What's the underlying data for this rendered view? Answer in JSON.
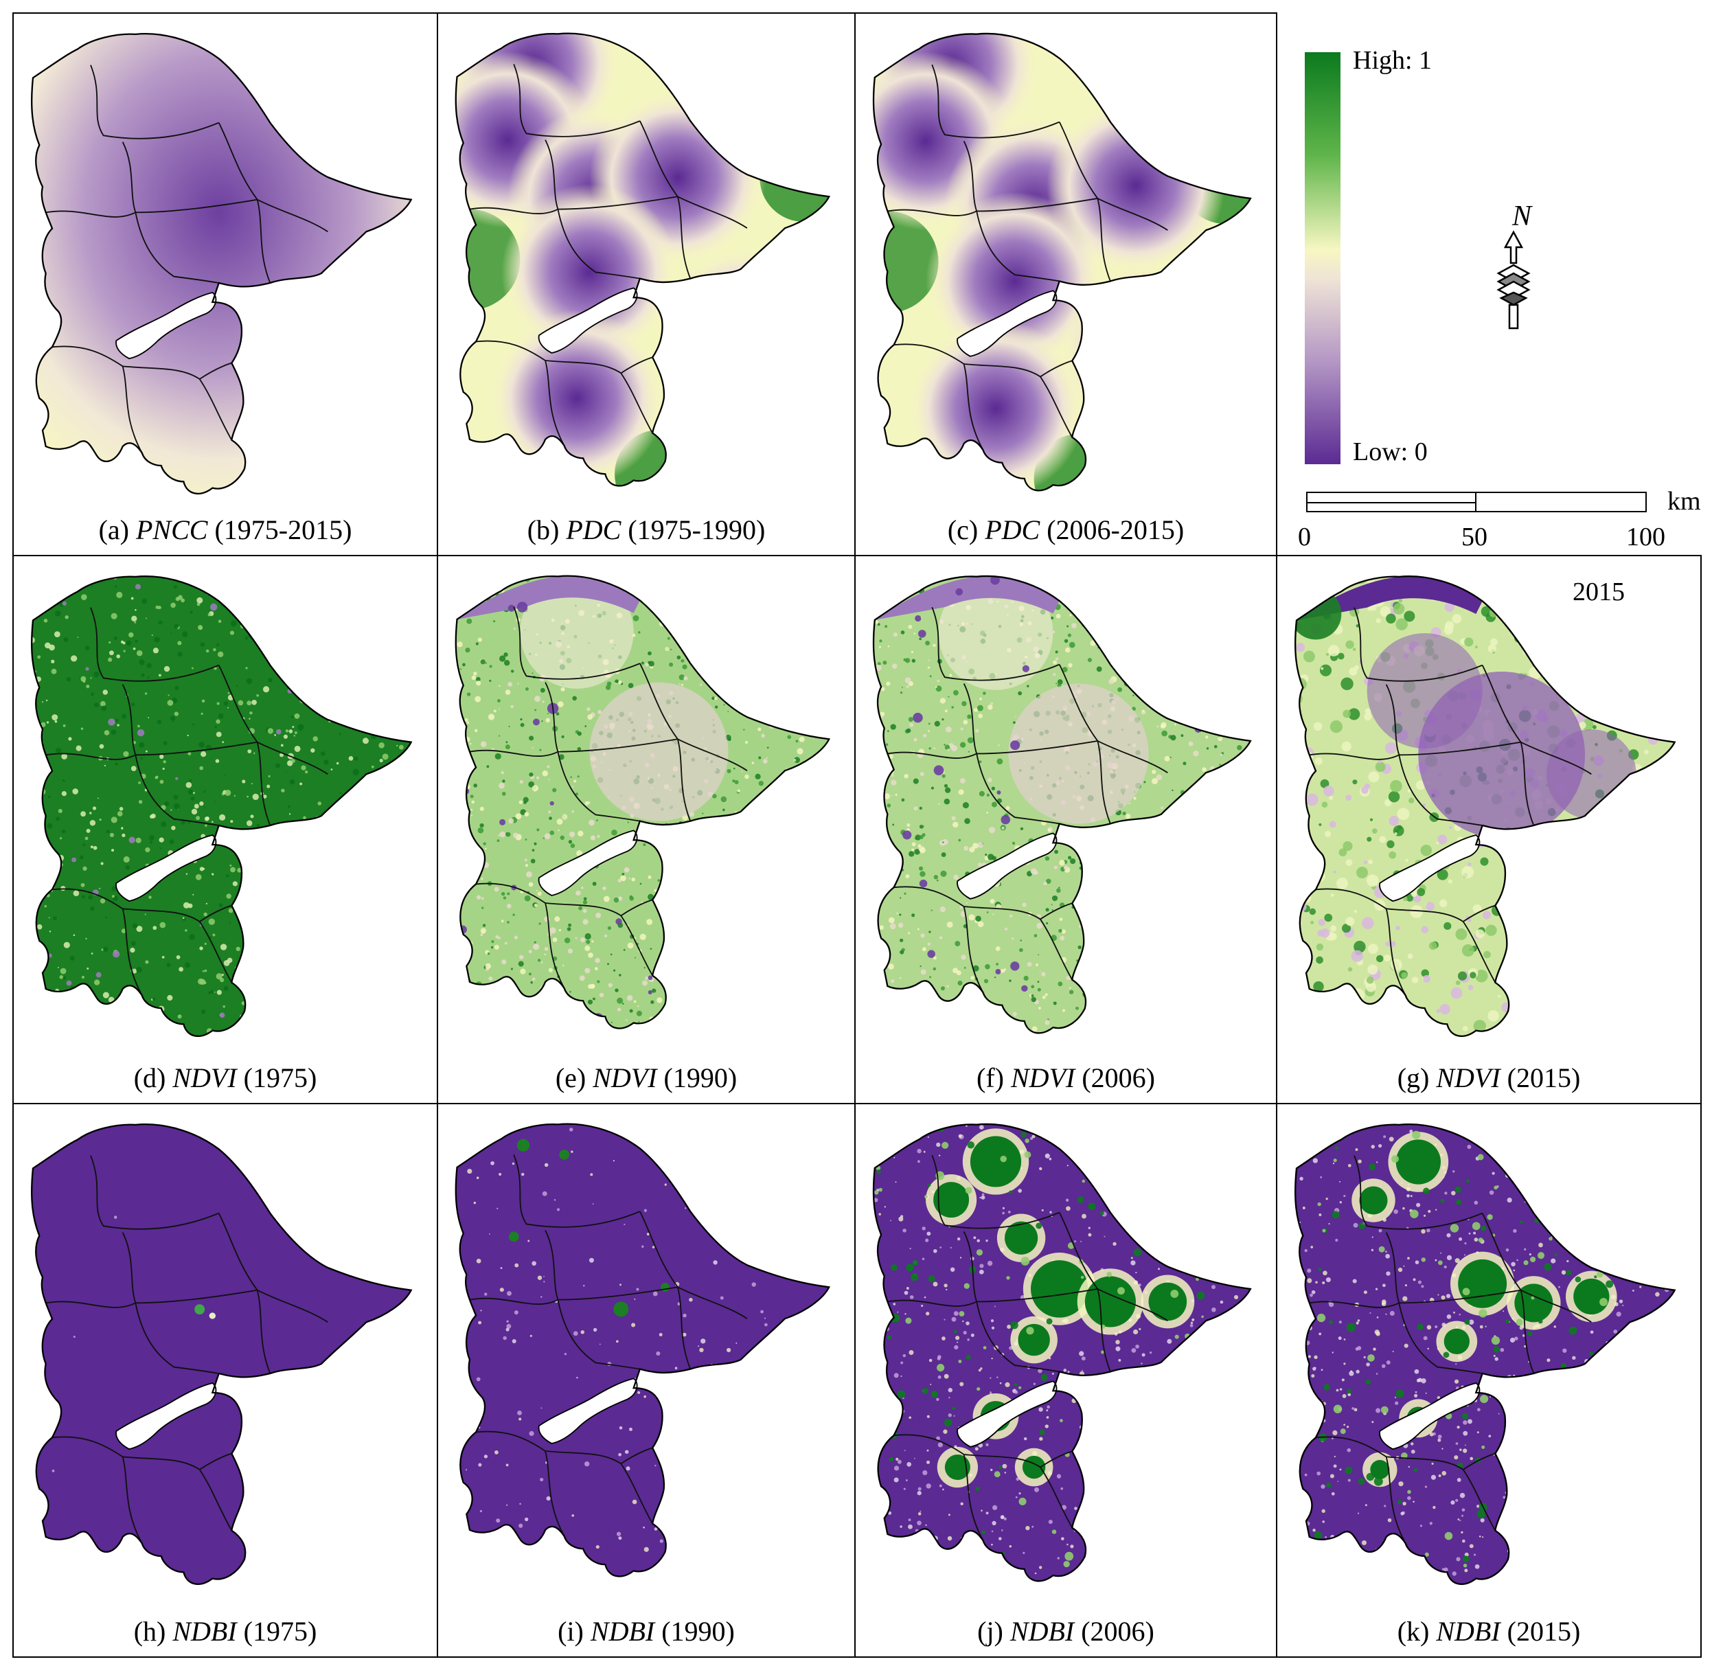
{
  "panels": [
    {
      "id": "a",
      "prefix": "(a) ",
      "index": "PNCC",
      "years": " (1975-2015)",
      "type": "gradient",
      "style": "pncc"
    },
    {
      "id": "b",
      "prefix": "(b) ",
      "index": "PDC",
      "years": " (1975-1990)",
      "type": "gradient",
      "style": "pdc1"
    },
    {
      "id": "c",
      "prefix": "(c) ",
      "index": "PDC",
      "years": " (2006-2015)",
      "type": "gradient",
      "style": "pdc2"
    },
    {
      "id": "d",
      "prefix": "(d) ",
      "index": "NDVI",
      "years": " (1975)",
      "type": "raster",
      "style": "ndvi1975"
    },
    {
      "id": "e",
      "prefix": "(e) ",
      "index": "NDVI",
      "years": " (1990)",
      "type": "raster",
      "style": "ndvi1990"
    },
    {
      "id": "f",
      "prefix": "(f) ",
      "index": "NDVI",
      "years": " (2006)",
      "type": "raster",
      "style": "ndvi2006"
    },
    {
      "id": "g",
      "prefix": "(g) ",
      "index": "NDVI",
      "years": " (2015)",
      "type": "raster",
      "style": "ndvi2015",
      "corner_label": "2015"
    },
    {
      "id": "h",
      "prefix": "(h) ",
      "index": "NDBI",
      "years": " (1975)",
      "type": "raster",
      "style": "ndbi1975"
    },
    {
      "id": "i",
      "prefix": "(i) ",
      "index": "NDBI",
      "years": " (1990)",
      "type": "raster",
      "style": "ndbi1990"
    },
    {
      "id": "j",
      "prefix": "(j) ",
      "index": "NDBI",
      "years": " (2006)",
      "type": "raster",
      "style": "ndbi2006"
    },
    {
      "id": "k",
      "prefix": "(k) ",
      "index": "NDBI",
      "years": " (2015)",
      "type": "raster",
      "style": "ndbi2015"
    }
  ],
  "legend": {
    "high_label": "High: 1",
    "low_label": "Low: 0",
    "north_label": "N",
    "scale_unit": "km",
    "scale_ticks": [
      "0",
      "50",
      "100"
    ],
    "ramp_colors": [
      "#0b7a1e",
      "#5fb54a",
      "#f7f7c2",
      "#efe4d6",
      "#b497c5",
      "#5b2a93"
    ]
  },
  "colors": {
    "green": "#0b7a1e",
    "light_green": "#8fcc6e",
    "yellow": "#f5f5c0",
    "beige": "#e9dccd",
    "purple": "#5b2a93",
    "mid_purple": "#8f62b4"
  }
}
